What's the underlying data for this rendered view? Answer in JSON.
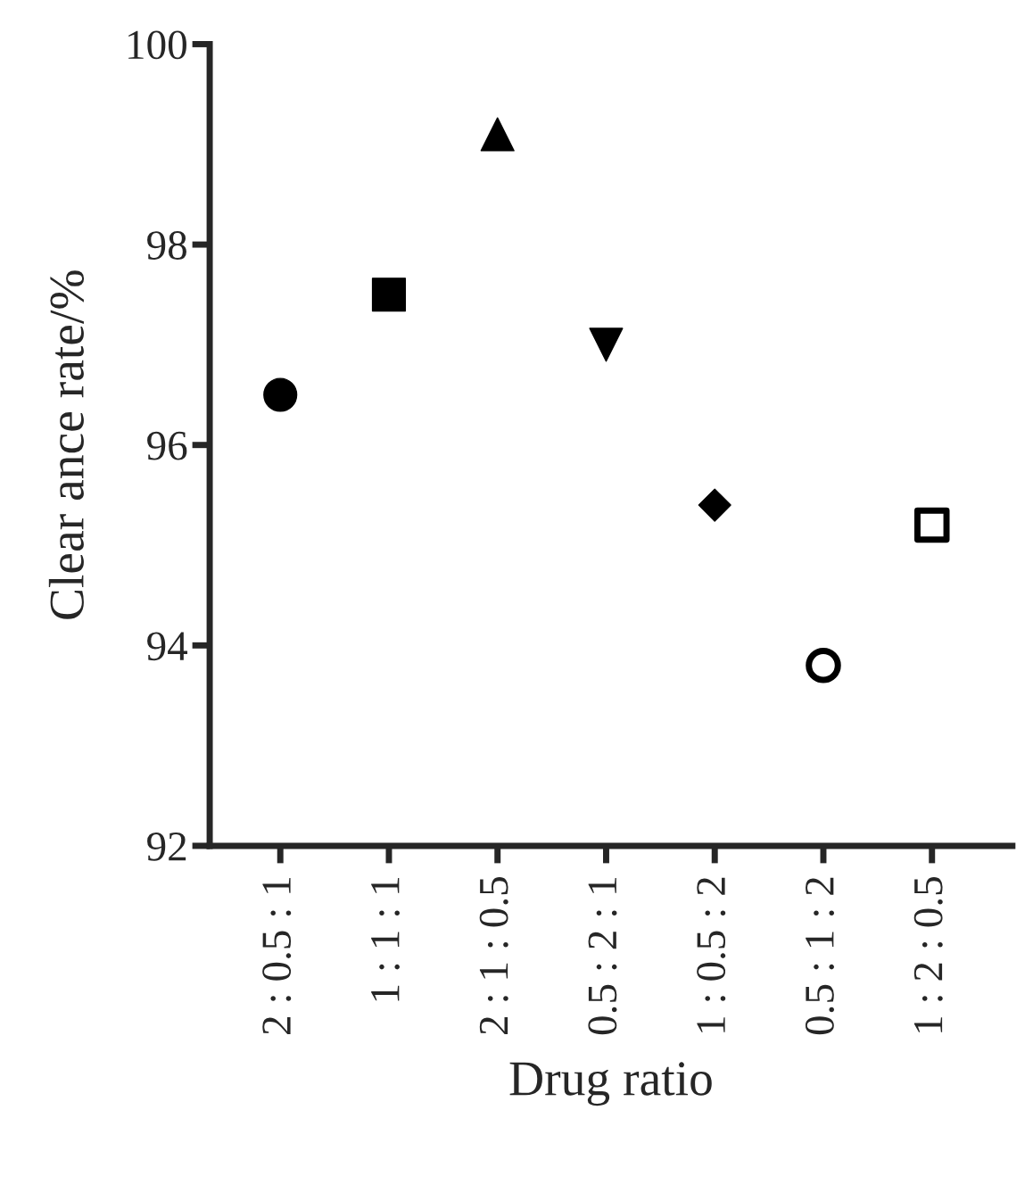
{
  "chart_data": {
    "type": "scatter",
    "xlabel": "Drug ratio",
    "ylabel": "Clear ance rate/%",
    "categories": [
      "2 : 0.5 : 1",
      "1 : 1 : 1",
      "2 : 1 : 0.5",
      "0.5 : 2 : 1",
      "1 : 0.5 : 2",
      "0.5 : 1 : 2",
      "1 : 2 : 0.5"
    ],
    "ylim": [
      92,
      100
    ],
    "yticks": [
      92,
      94,
      96,
      98,
      100
    ],
    "grid": false,
    "legend": false,
    "series": [
      {
        "values": [
          96.5,
          null,
          null,
          null,
          null,
          null,
          null
        ],
        "color": "#000000",
        "marker": "circle"
      },
      {
        "values": [
          null,
          97.5,
          null,
          null,
          null,
          null,
          null
        ],
        "color": "#000000",
        "marker": "square"
      },
      {
        "values": [
          null,
          null,
          99.1,
          null,
          null,
          null,
          null
        ],
        "color": "#000000",
        "marker": "triangle"
      },
      {
        "values": [
          null,
          null,
          null,
          97.0,
          null,
          null,
          null
        ],
        "color": "#000000",
        "marker": "triangle-down"
      },
      {
        "values": [
          null,
          null,
          null,
          null,
          95.4,
          null,
          null
        ],
        "color": "#000000",
        "marker": "diamond"
      },
      {
        "values": [
          null,
          null,
          null,
          null,
          null,
          93.8,
          null
        ],
        "color": "#000000",
        "marker": "circle-open"
      },
      {
        "values": [
          null,
          null,
          null,
          null,
          null,
          null,
          95.2
        ],
        "color": "#000000",
        "marker": "square-open"
      }
    ]
  }
}
